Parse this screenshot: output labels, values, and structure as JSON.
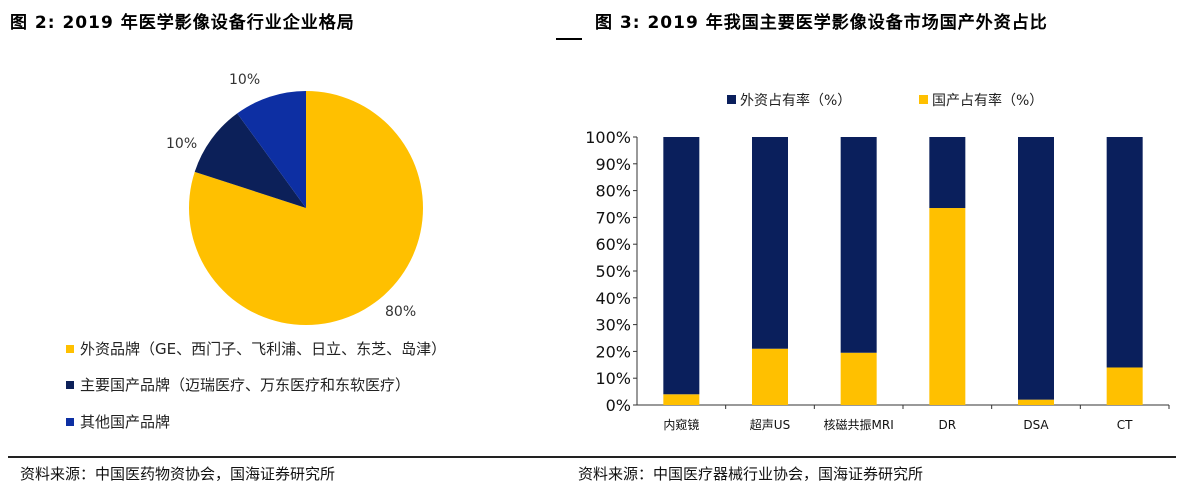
{
  "left": {
    "title": "图 2:  2019 年医学影像设备行业企业格局",
    "source": "资料来源：中国医药物资协会，国海证券研究所"
  },
  "right": {
    "title": "图 3:  2019 年我国主要医学影像设备市场国产外资占比",
    "source": "资料来源：中国医疗器械行业协会，国海证券研究所"
  },
  "chart_data": [
    {
      "type": "pie",
      "slices": [
        {
          "name": "外资品牌（GE、西门子、飞利浦、日立、东芝、岛津）",
          "value": 80,
          "label": "80%",
          "color": "#FFC000"
        },
        {
          "name": "主要国产品牌（迈瑞医疗、万东医疗和东软医疗）",
          "value": 10,
          "label": "10%",
          "color": "#0C2059"
        },
        {
          "name": "其他国产品牌",
          "value": 10,
          "label": "10%",
          "color": "#0D2FA3"
        }
      ],
      "legend": "bottom-left"
    },
    {
      "type": "bar",
      "stacked": true,
      "categories": [
        "内窥镜",
        "超声US",
        "核磁共振MRI",
        "DR",
        "DSA",
        "CT"
      ],
      "series": [
        {
          "name": "外资占有率（%）",
          "values": [
            96,
            79,
            80.5,
            26.5,
            98,
            86
          ],
          "color": "#0A1F5C"
        },
        {
          "name": "国产占有率（%）",
          "values": [
            4,
            21,
            19.5,
            73.5,
            2,
            14
          ],
          "color": "#FFC000"
        }
      ],
      "yticks": [
        "0%",
        "10%",
        "20%",
        "30%",
        "40%",
        "50%",
        "60%",
        "70%",
        "80%",
        "90%",
        "100%"
      ],
      "ylim": [
        0,
        100
      ],
      "legend": "top",
      "grid": false
    }
  ]
}
